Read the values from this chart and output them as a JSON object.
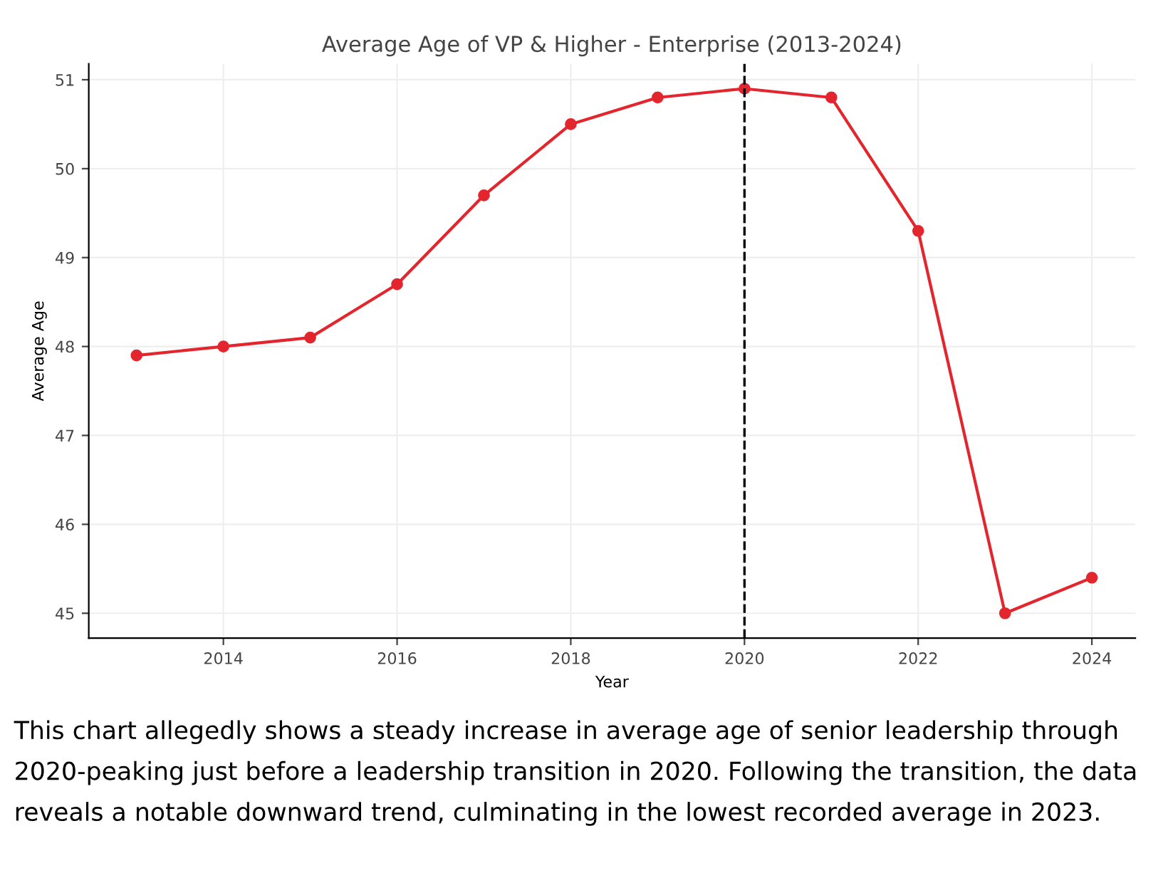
{
  "chart_data": {
    "type": "line",
    "title": "Average Age of VP & Higher - Enterprise (2013-2024)",
    "xlabel": "Year",
    "ylabel": "Average Age",
    "x": [
      2013,
      2014,
      2015,
      2016,
      2017,
      2018,
      2019,
      2020,
      2021,
      2022,
      2023,
      2024
    ],
    "series": [
      {
        "color": "#e3262e",
        "values": [
          47.9,
          48.0,
          48.1,
          48.7,
          49.7,
          50.5,
          50.8,
          50.9,
          50.8,
          49.3,
          45.0,
          45.4
        ]
      }
    ],
    "xlim": [
      2012.45,
      2024.5
    ],
    "xticks": [
      2014,
      2016,
      2018,
      2020,
      2022,
      2024
    ],
    "ylim": [
      44.72,
      51.18
    ],
    "yticks": [
      45,
      46,
      47,
      48,
      49,
      50,
      51
    ],
    "ref_lines": [
      {
        "axis": "x",
        "value": 2020,
        "color": "#000000",
        "line_style": "dashed"
      }
    ],
    "grid": true,
    "marker": "circle",
    "line_style": "solid",
    "legend": false,
    "annotations": [
      "This chart allegedly shows a steady increase in average age of senior leadership through 2020-peaking just before a leadership transition in 2020. Following the transition, the data reveals a notable downward trend, culminating in the lowest recorded average in 2023."
    ]
  }
}
